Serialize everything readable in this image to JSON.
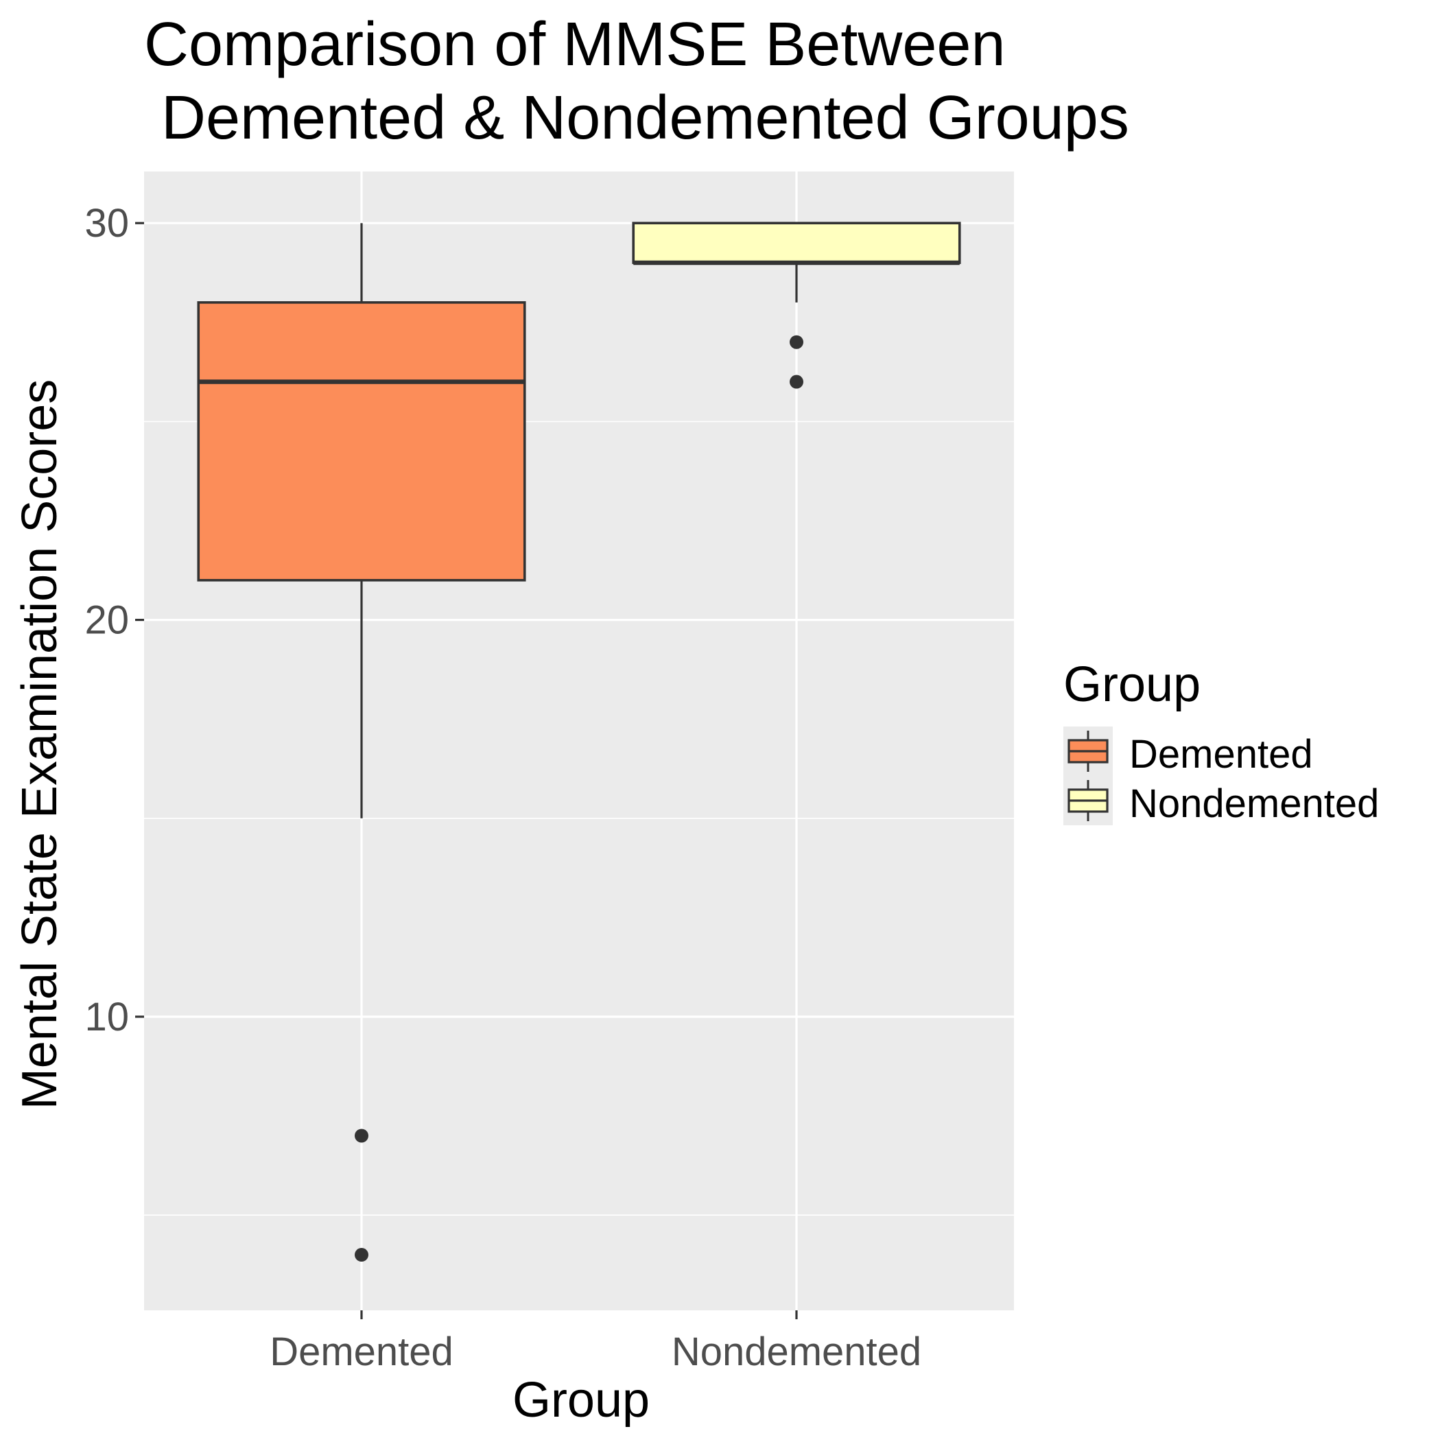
{
  "chart_data": {
    "type": "box",
    "title_lines": [
      "Comparison of MMSE Between",
      " Demented & Nondemented Groups"
    ],
    "xlabel": "Group",
    "ylabel": "Mental State Examination Scores",
    "categories": [
      "Demented",
      "Nondemented"
    ],
    "ylim": [
      2.6,
      31.3
    ],
    "y_major_ticks": [
      10,
      20,
      30
    ],
    "y_minor_ticks": [
      5,
      15,
      25
    ],
    "grid": true,
    "legend": {
      "title": "Group",
      "placement": "right",
      "entries": [
        "Demented",
        "Nondemented"
      ]
    },
    "colors": {
      "Demented": "#fc8d59",
      "Nondemented": "#ffffbf",
      "panel_background": "#ebebeb",
      "grid": "#ffffff",
      "outline": "#333333"
    },
    "boxes": [
      {
        "name": "Demented",
        "lower_whisker": 15,
        "q1": 21,
        "median": 26,
        "q3": 28,
        "upper_whisker": 30,
        "outliers": [
          7,
          4
        ]
      },
      {
        "name": "Nondemented",
        "lower_whisker": 28,
        "q1": 29,
        "median": 29,
        "q3": 30,
        "upper_whisker": 30,
        "outliers": [
          27,
          26
        ]
      }
    ]
  }
}
